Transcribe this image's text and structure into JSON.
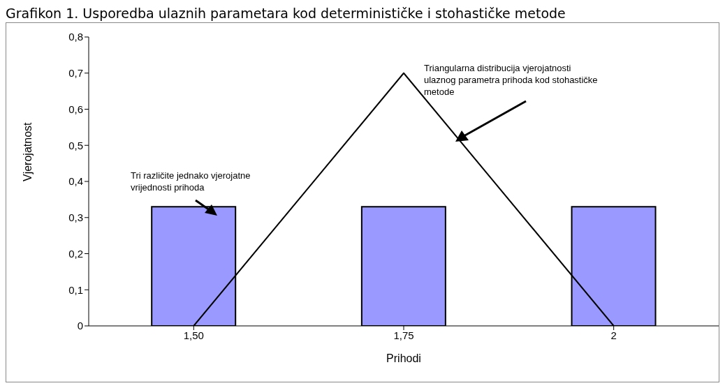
{
  "chart_data": {
    "type": "bar",
    "title": "Grafikon 1. Usporedba ulaznih parametara kod determinističke i stohastičke metode",
    "xlabel": "Prihodi",
    "ylabel": "Vjerojatnost",
    "categories": [
      "1,50",
      "1,75",
      "2"
    ],
    "series": [
      {
        "color": "#9999ff",
        "values": [
          0.33,
          0.33,
          0.33
        ]
      },
      {
        "type": "line",
        "color": "#000000",
        "values": [
          0,
          0.7,
          0
        ]
      }
    ],
    "ylim": [
      0,
      0.8
    ],
    "yticks": [
      {
        "value": 0,
        "label": "0"
      },
      {
        "value": 0.1,
        "label": "0,1"
      },
      {
        "value": 0.2,
        "label": "0,2"
      },
      {
        "value": 0.3,
        "label": "0,3"
      },
      {
        "value": 0.4,
        "label": "0,4"
      },
      {
        "value": 0.5,
        "label": "0,5"
      },
      {
        "value": 0.6,
        "label": "0,6"
      },
      {
        "value": 0.7,
        "label": "0,7"
      },
      {
        "value": 0.8,
        "label": "0,8"
      }
    ],
    "grid": false,
    "legend": false,
    "marker": "none",
    "line_style": "solid",
    "annotations": [
      "Triangularna distribucija vjerojatnosti ulaznog parametra prihoda kod stohastičke metode",
      "Tri različite jednako vjerojatne vrijednosti prihoda"
    ]
  }
}
